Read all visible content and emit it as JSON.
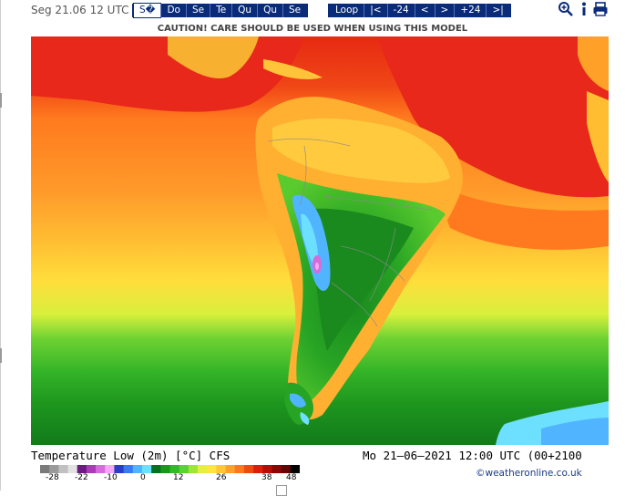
{
  "header": {
    "date_label": "Seg 21.06 12 UTC",
    "days": [
      "S�",
      "Do",
      "Se",
      "Te",
      "Qu",
      "Qu",
      "Se"
    ],
    "steps": [
      "Loop",
      "|<",
      "-24",
      "<",
      ">",
      "+24",
      ">|"
    ],
    "tools": [
      "zoom-icon",
      "info-icon",
      "print-icon"
    ]
  },
  "caution": "CAUTION! CARE SHOULD BE USED WHEN USING THIS MODEL",
  "map": {
    "title_left": "Temperature Low (2m) [°C] CFS",
    "title_right": "Mo 21–06–2021 12:00 UTC (00+2100"
  },
  "legend": {
    "labels": [
      "-28",
      "-22",
      "-10",
      "0",
      "12",
      "26",
      "38",
      "48"
    ],
    "colors": [
      "#7a7a7a",
      "#9a9a9a",
      "#c0c0c0",
      "#e2e2e2",
      "#6b1a80",
      "#a83cb4",
      "#d66cdc",
      "#f2a8f2",
      "#2a3ccc",
      "#3c78f0",
      "#50b4ff",
      "#6ee0ff",
      "#0a6e1e",
      "#1e961e",
      "#34b828",
      "#5ad232",
      "#9ee632",
      "#e6f03c",
      "#ffe63c",
      "#ffc832",
      "#ffa028",
      "#ff7820",
      "#f04a14",
      "#dc1e0e",
      "#b40e0a",
      "#8c0606",
      "#640404",
      "#000000"
    ]
  },
  "copyright": "©weatheronline.co.uk",
  "colors": {
    "nav_bg": "#0a2a7a",
    "warm_red": "#f02814",
    "warm_orange": "#ff9028",
    "cool_green": "#1e961e",
    "cold_blue": "#50b4ff"
  }
}
